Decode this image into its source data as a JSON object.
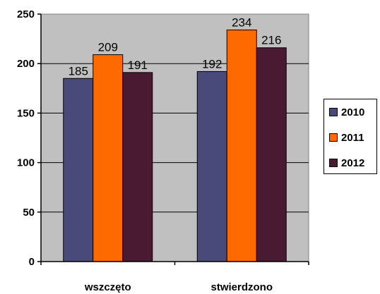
{
  "chart_data": {
    "type": "bar",
    "categories": [
      "wszczęto",
      "stwierdzono"
    ],
    "series": [
      {
        "name": "2010",
        "values": [
          185,
          192
        ],
        "color": "#4a4a7a"
      },
      {
        "name": "2011",
        "values": [
          209,
          234
        ],
        "color": "#ff6a00"
      },
      {
        "name": "2012",
        "values": [
          191,
          216
        ],
        "color": "#4a1a32"
      }
    ],
    "ylim": [
      0,
      250
    ],
    "yticks": [
      "0",
      "50",
      "100",
      "150",
      "200",
      "250"
    ],
    "grid": true,
    "plot_background": "#c0c0c0",
    "legend_position": "right"
  }
}
